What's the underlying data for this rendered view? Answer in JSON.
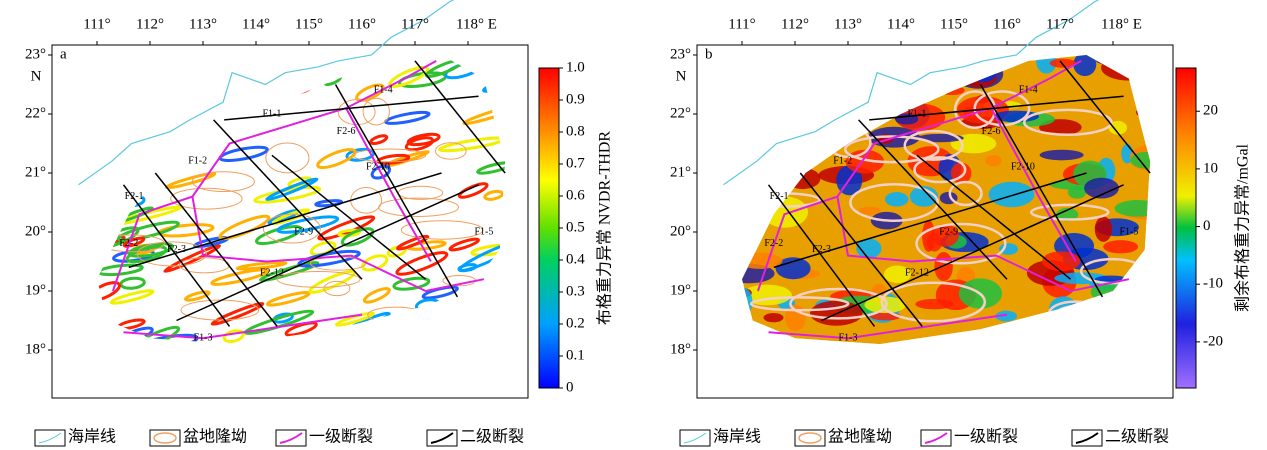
{
  "panels": [
    {
      "label": "a",
      "lon_ticks": [
        {
          "value": 111,
          "label": "111°"
        },
        {
          "value": 112,
          "label": "112°"
        },
        {
          "value": 113,
          "label": "113°"
        },
        {
          "value": 114,
          "label": "114°"
        },
        {
          "value": 115,
          "label": "115°"
        },
        {
          "value": 116,
          "label": "116°"
        },
        {
          "value": 117,
          "label": "117°"
        },
        {
          "value": 118,
          "label": "118° E"
        }
      ],
      "lat_ticks": [
        {
          "value": 23,
          "label": "23°"
        },
        {
          "value": 22,
          "label": "22°"
        },
        {
          "value": 21,
          "label": "21°"
        },
        {
          "value": 20,
          "label": "20°"
        },
        {
          "value": 19,
          "label": "19°"
        },
        {
          "value": 18,
          "label": "18°"
        }
      ],
      "lat_hemisphere": "N",
      "colorbar": {
        "title": "布格重力异常 NVDR-THDR",
        "range": [
          0,
          1
        ],
        "ticks": [
          0,
          0.1,
          0.2,
          0.3,
          0.4,
          0.5,
          0.6,
          0.7,
          0.8,
          0.9,
          {
            "value": 1,
            "label": "1.0"
          }
        ]
      },
      "fault_labels": [
        "F1-1",
        "F1-4",
        "F2-6",
        "F2-10",
        "F1-2",
        "F2-1",
        "F2-2",
        "F2-9",
        "F2-12",
        "F1-5",
        "F1-3",
        "F2-3"
      ]
    },
    {
      "label": "b",
      "lon_ticks": [
        {
          "value": 111,
          "label": "111°"
        },
        {
          "value": 112,
          "label": "112°"
        },
        {
          "value": 113,
          "label": "113°"
        },
        {
          "value": 114,
          "label": "114°"
        },
        {
          "value": 115,
          "label": "115°"
        },
        {
          "value": 116,
          "label": "116°"
        },
        {
          "value": 117,
          "label": "117°"
        },
        {
          "value": 118,
          "label": "118° E"
        }
      ],
      "lat_ticks": [
        {
          "value": 23,
          "label": "23°"
        },
        {
          "value": 22,
          "label": "22°"
        },
        {
          "value": 21,
          "label": "21°"
        },
        {
          "value": 20,
          "label": "20°"
        },
        {
          "value": 19,
          "label": "19°"
        },
        {
          "value": 18,
          "label": "18°"
        }
      ],
      "lat_hemisphere": "N",
      "colorbar": {
        "title": "剩余布格重力异常/mGal",
        "range": [
          -28,
          27.5
        ],
        "ticks": [
          -20,
          -10,
          0,
          10,
          20
        ]
      },
      "fault_labels": [
        "F1-1",
        "F1-4",
        "F2-6",
        "F2-10",
        "F1-2",
        "F2-1",
        "F2-2",
        "F2-9",
        "F2-12",
        "F1-5",
        "F1-3",
        "F2-3"
      ]
    }
  ],
  "legend": [
    "海岸线",
    "盆地隆坳",
    "一级断裂",
    "二级断裂"
  ]
}
